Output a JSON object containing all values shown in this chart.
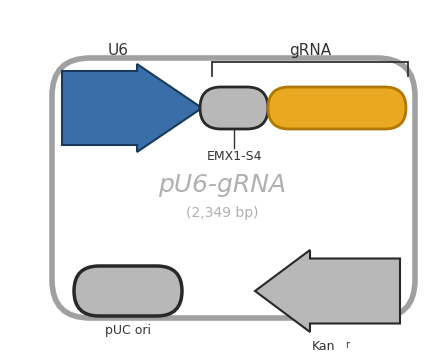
{
  "title": "pU6-gRNA",
  "subtitle": "(2,349 bp)",
  "label_u6": "U6",
  "label_grna": "gRNA",
  "label_emx1": "EMX1-S4",
  "label_puc": "pUC ori",
  "label_kan": "Kan",
  "label_kan_sup": "r",
  "plasmid_color": "#a0a0a0",
  "plasmid_linewidth": 4.0,
  "blue_arrow_color": "#3a6ea8",
  "blue_arrow_edge": "#1a3a5a",
  "gray_capsule_color": "#b8b8b8",
  "gray_capsule_edge": "#282828",
  "gold_bar_color": "#e8a820",
  "gold_bar_edge": "#b07800",
  "gray_arrow_color": "#b8b8b8",
  "gray_arrow_edge": "#282828",
  "puc_pill_color": "#b8b8b8",
  "puc_pill_edge": "#282828",
  "text_color_main": "#b0b0b0",
  "text_color_label": "#333333",
  "background": "#ffffff"
}
